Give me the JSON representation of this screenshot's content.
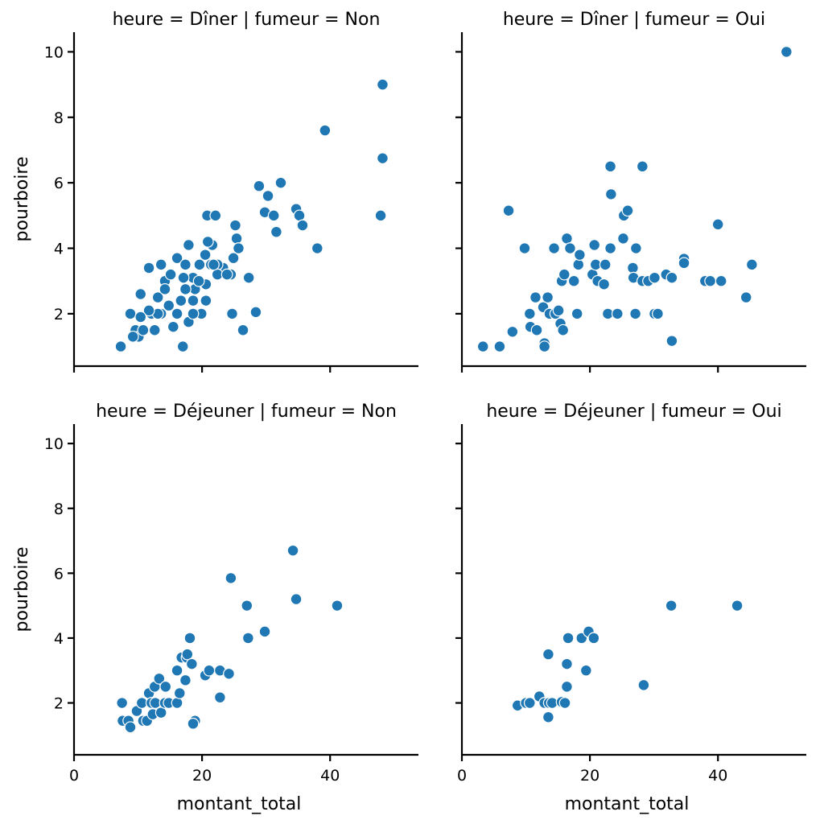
{
  "chart_data": {
    "type": "scatter",
    "marker_color": "#1f77b4",
    "marker_edge_color": "#ffffff",
    "xlabel": "montant_total",
    "ylabel": "pourboire",
    "xlim": [
      0,
      53.8
    ],
    "ylim": [
      0.4,
      10.6
    ],
    "xticks": [
      0,
      20,
      40
    ],
    "yticks": [
      2,
      4,
      6,
      8,
      10
    ],
    "grid": false,
    "panels": [
      {
        "title": "heure = Dîner | fumeur = Non",
        "row": 0,
        "col": 0,
        "points": [
          [
            7.3,
            1.0
          ],
          [
            8.8,
            2.0
          ],
          [
            10.4,
            2.6
          ],
          [
            11.7,
            3.4
          ],
          [
            9.6,
            1.5
          ],
          [
            10.1,
            1.3
          ],
          [
            10.8,
            1.5
          ],
          [
            12.6,
            1.5
          ],
          [
            12.1,
            2.0
          ],
          [
            13.1,
            2.5
          ],
          [
            13.6,
            2.0
          ],
          [
            14.2,
            3.0
          ],
          [
            15.5,
            1.6
          ],
          [
            17.0,
            1.0
          ],
          [
            17.9,
            1.75
          ],
          [
            16.1,
            3.7
          ],
          [
            17.9,
            4.1
          ],
          [
            20.8,
            5.0
          ],
          [
            22.1,
            5.0
          ],
          [
            21.6,
            4.1
          ],
          [
            25.2,
            4.7
          ],
          [
            25.4,
            4.3
          ],
          [
            25.7,
            4.0
          ],
          [
            24.9,
            3.7
          ],
          [
            23.3,
            3.4
          ],
          [
            24.5,
            3.2
          ],
          [
            27.3,
            3.1
          ],
          [
            24.7,
            2.0
          ],
          [
            26.4,
            1.5
          ],
          [
            28.4,
            2.05
          ],
          [
            28.9,
            5.9
          ],
          [
            30.3,
            5.6
          ],
          [
            32.3,
            6.0
          ],
          [
            29.8,
            5.1
          ],
          [
            31.2,
            5.0
          ],
          [
            31.6,
            4.5
          ],
          [
            34.7,
            5.2
          ],
          [
            35.2,
            5.0
          ],
          [
            35.7,
            4.7
          ],
          [
            38.0,
            4.0
          ],
          [
            39.2,
            7.6
          ],
          [
            48.2,
            9.0
          ],
          [
            48.2,
            6.75
          ],
          [
            47.9,
            5.0
          ],
          [
            17.4,
            3.5
          ],
          [
            18.6,
            3.1
          ],
          [
            19.6,
            3.5
          ],
          [
            20.5,
            3.8
          ],
          [
            21.4,
            3.5
          ],
          [
            22.4,
            3.5
          ],
          [
            18.9,
            2.75
          ],
          [
            17.4,
            2.75
          ],
          [
            16.7,
            2.4
          ],
          [
            18.6,
            2.4
          ],
          [
            19.9,
            2.0
          ],
          [
            20.6,
            2.4
          ],
          [
            20.6,
            2.9
          ],
          [
            22.4,
            3.2
          ],
          [
            23.9,
            3.2
          ],
          [
            14.8,
            2.25
          ],
          [
            16.1,
            2.0
          ],
          [
            18.6,
            2.0
          ],
          [
            13.1,
            2.0
          ],
          [
            11.7,
            2.1
          ],
          [
            13.6,
            3.5
          ],
          [
            15.1,
            3.2
          ],
          [
            17.1,
            3.1
          ],
          [
            14.2,
            2.75
          ],
          [
            20.9,
            4.2
          ],
          [
            19.5,
            3.0
          ],
          [
            21.8,
            3.5
          ],
          [
            9.2,
            1.3
          ],
          [
            10.4,
            1.9
          ]
        ]
      },
      {
        "title": "heure = Dîner | fumeur = Oui",
        "row": 0,
        "col": 1,
        "points": [
          [
            3.3,
            1.0
          ],
          [
            5.9,
            1.0
          ],
          [
            7.3,
            5.15
          ],
          [
            7.9,
            1.45
          ],
          [
            9.8,
            4.0
          ],
          [
            10.6,
            2.0
          ],
          [
            10.7,
            1.6
          ],
          [
            11.7,
            1.5
          ],
          [
            11.5,
            2.5
          ],
          [
            13.4,
            2.5
          ],
          [
            12.7,
            2.2
          ],
          [
            12.9,
            1.1
          ],
          [
            12.9,
            1.0
          ],
          [
            13.7,
            2.0
          ],
          [
            14.6,
            2.0
          ],
          [
            15.1,
            2.1
          ],
          [
            15.4,
            1.7
          ],
          [
            15.8,
            1.5
          ],
          [
            14.4,
            4.0
          ],
          [
            16.4,
            4.3
          ],
          [
            16.9,
            4.0
          ],
          [
            15.6,
            3.0
          ],
          [
            16.0,
            3.2
          ],
          [
            17.5,
            3.0
          ],
          [
            18.0,
            2.0
          ],
          [
            18.2,
            3.5
          ],
          [
            18.4,
            3.8
          ],
          [
            20.4,
            3.2
          ],
          [
            20.7,
            4.1
          ],
          [
            20.9,
            3.5
          ],
          [
            21.2,
            3.0
          ],
          [
            22.2,
            2.9
          ],
          [
            22.4,
            3.5
          ],
          [
            22.8,
            2.0
          ],
          [
            23.2,
            6.5
          ],
          [
            23.3,
            5.65
          ],
          [
            23.2,
            4.0
          ],
          [
            24.3,
            2.0
          ],
          [
            25.2,
            4.3
          ],
          [
            25.3,
            5.0
          ],
          [
            25.9,
            5.15
          ],
          [
            26.7,
            3.4
          ],
          [
            26.8,
            3.1
          ],
          [
            27.2,
            4.0
          ],
          [
            27.1,
            2.0
          ],
          [
            28.2,
            6.5
          ],
          [
            28.2,
            3.0
          ],
          [
            29.1,
            3.0
          ],
          [
            30.1,
            3.1
          ],
          [
            30.1,
            2.0
          ],
          [
            30.6,
            2.0
          ],
          [
            31.9,
            3.2
          ],
          [
            32.8,
            3.1
          ],
          [
            32.8,
            1.17
          ],
          [
            34.7,
            3.68
          ],
          [
            34.7,
            3.55
          ],
          [
            38.0,
            3.0
          ],
          [
            38.8,
            3.0
          ],
          [
            40.5,
            3.0
          ],
          [
            40.0,
            4.73
          ],
          [
            44.4,
            2.5
          ],
          [
            45.3,
            3.5
          ],
          [
            50.7,
            10.0
          ]
        ]
      },
      {
        "title": "heure = Déjeuner | fumeur = Non",
        "row": 1,
        "col": 0,
        "points": [
          [
            7.5,
            2.0
          ],
          [
            7.6,
            1.45
          ],
          [
            8.5,
            1.45
          ],
          [
            8.8,
            1.25
          ],
          [
            9.8,
            1.75
          ],
          [
            10.6,
            2.0
          ],
          [
            10.8,
            1.45
          ],
          [
            11.4,
            1.45
          ],
          [
            11.7,
            2.3
          ],
          [
            12.1,
            2.0
          ],
          [
            12.3,
            1.65
          ],
          [
            12.7,
            2.0
          ],
          [
            12.6,
            2.5
          ],
          [
            13.3,
            2.75
          ],
          [
            13.6,
            1.7
          ],
          [
            14.2,
            2.0
          ],
          [
            14.3,
            2.5
          ],
          [
            14.8,
            2.0
          ],
          [
            16.1,
            2.0
          ],
          [
            16.1,
            3.0
          ],
          [
            16.5,
            2.3
          ],
          [
            16.8,
            3.4
          ],
          [
            17.6,
            3.4
          ],
          [
            17.4,
            2.7
          ],
          [
            18.1,
            4.0
          ],
          [
            17.7,
            3.5
          ],
          [
            18.4,
            3.2
          ],
          [
            18.9,
            1.45
          ],
          [
            18.6,
            1.36
          ],
          [
            20.5,
            2.85
          ],
          [
            21.1,
            3.0
          ],
          [
            22.8,
            3.0
          ],
          [
            22.8,
            2.17
          ],
          [
            24.2,
            2.9
          ],
          [
            24.5,
            5.85
          ],
          [
            27.0,
            5.0
          ],
          [
            27.2,
            4.0
          ],
          [
            29.8,
            4.2
          ],
          [
            34.2,
            6.7
          ],
          [
            34.7,
            5.2
          ],
          [
            41.1,
            5.0
          ]
        ]
      },
      {
        "title": "heure = Déjeuner | fumeur = Oui",
        "row": 1,
        "col": 1,
        "points": [
          [
            8.7,
            1.92
          ],
          [
            10.0,
            2.0
          ],
          [
            10.6,
            2.0
          ],
          [
            12.1,
            2.2
          ],
          [
            12.9,
            2.0
          ],
          [
            13.6,
            2.0
          ],
          [
            13.5,
            3.5
          ],
          [
            13.5,
            1.56
          ],
          [
            14.1,
            2.0
          ],
          [
            15.6,
            2.03
          ],
          [
            16.1,
            2.0
          ],
          [
            16.4,
            2.5
          ],
          [
            16.4,
            3.2
          ],
          [
            16.6,
            4.0
          ],
          [
            18.7,
            4.0
          ],
          [
            19.4,
            3.0
          ],
          [
            19.8,
            4.2
          ],
          [
            20.6,
            4.0
          ],
          [
            28.4,
            2.55
          ],
          [
            32.7,
            5.0
          ],
          [
            43.0,
            5.0
          ]
        ]
      }
    ]
  }
}
